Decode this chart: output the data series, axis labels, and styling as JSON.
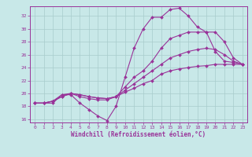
{
  "xlabel": "Windchill (Refroidissement éolien,°C)",
  "xlim": [
    -0.5,
    23.5
  ],
  "ylim": [
    15.5,
    33.5
  ],
  "yticks": [
    16,
    18,
    20,
    22,
    24,
    26,
    28,
    30,
    32
  ],
  "xticks": [
    0,
    1,
    2,
    3,
    4,
    5,
    6,
    7,
    8,
    9,
    10,
    11,
    12,
    13,
    14,
    15,
    16,
    17,
    18,
    19,
    20,
    21,
    22,
    23
  ],
  "bg_color": "#c8e8e8",
  "grid_color": "#a8cccc",
  "line_color": "#993399",
  "line1_y": [
    18.5,
    18.5,
    18.5,
    19.8,
    19.8,
    18.5,
    17.5,
    16.5,
    15.8,
    18.0,
    22.5,
    27.0,
    30.0,
    31.8,
    31.8,
    33.0,
    33.2,
    32.0,
    30.3,
    29.5,
    26.5,
    25.0,
    24.8,
    24.5
  ],
  "line2_y": [
    18.5,
    18.5,
    18.8,
    19.8,
    20.0,
    19.5,
    19.2,
    19.0,
    19.0,
    19.5,
    21.0,
    22.5,
    23.5,
    25.0,
    27.0,
    28.5,
    29.0,
    29.5,
    29.5,
    29.5,
    29.5,
    28.0,
    25.5,
    24.5
  ],
  "line3_y": [
    18.5,
    18.5,
    18.8,
    19.5,
    20.0,
    19.8,
    19.5,
    19.3,
    19.2,
    19.5,
    20.5,
    21.5,
    22.5,
    23.5,
    24.5,
    25.5,
    26.0,
    26.5,
    26.8,
    27.0,
    26.8,
    26.0,
    25.0,
    24.5
  ],
  "line4_y": [
    18.5,
    18.5,
    18.8,
    19.5,
    20.0,
    19.8,
    19.5,
    19.3,
    19.2,
    19.5,
    20.2,
    20.8,
    21.5,
    22.0,
    23.0,
    23.5,
    23.8,
    24.0,
    24.2,
    24.3,
    24.5,
    24.5,
    24.5,
    24.5
  ]
}
